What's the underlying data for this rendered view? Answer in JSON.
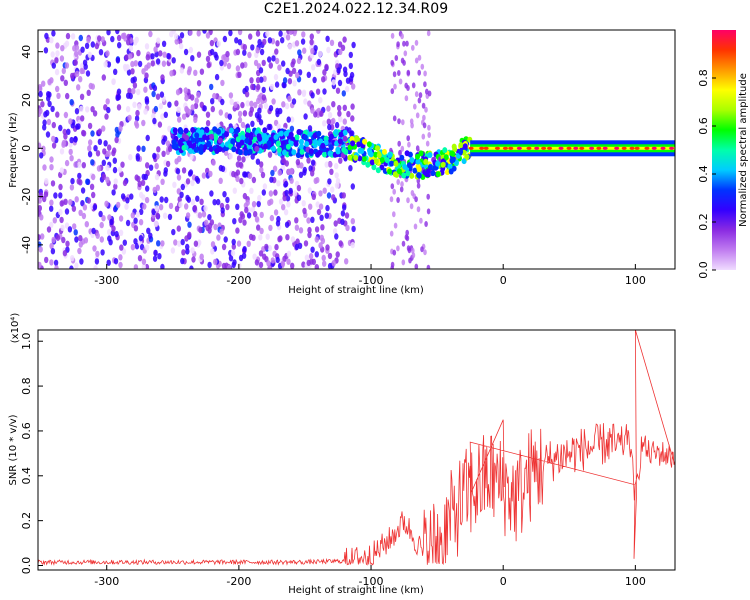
{
  "title": "C2E1.2024.022.12.34.R09",
  "chart_data": [
    {
      "type": "heatmap",
      "xlabel": "Height of straight line (km)",
      "ylabel": "Frequency (Hz)",
      "xlim": [
        -352,
        130
      ],
      "ylim": [
        -50,
        49
      ],
      "xticks": [
        -300,
        -200,
        -100,
        0,
        100
      ],
      "yticks": [
        -40,
        -20,
        0,
        20,
        40
      ],
      "colorbar": {
        "label": "Normalized spectral amplitude",
        "range": [
          0.0,
          1.0
        ],
        "ticks": [
          0.0,
          0.2,
          0.4,
          0.6,
          0.8
        ],
        "colors": [
          "#f0dcff",
          "#c07cf0",
          "#8a2be2",
          "#3300ff",
          "#0033ff",
          "#00ccff",
          "#00ffaa",
          "#00ff00",
          "#aaff00",
          "#ffff00",
          "#ff9900",
          "#ff3300",
          "#ff0066"
        ]
      },
      "features": [
        {
          "x_range": [
            -352,
            -113
          ],
          "freq_range": [
            -50,
            49
          ],
          "amplitude": 0.15,
          "desc": "broadband noise"
        },
        {
          "x": [
            -250,
            -200,
            -150,
            -120,
            -100,
            -80,
            -60,
            -40,
            -25
          ],
          "freq": [
            3,
            3,
            2,
            2,
            -3,
            -7,
            -7,
            -5,
            1
          ],
          "amplitude": 0.5
        },
        {
          "x_range": [
            -25,
            130
          ],
          "freq": 0,
          "amplitude": 0.95,
          "desc": "strong carrier line"
        }
      ]
    },
    {
      "type": "line",
      "xlabel": "Height of straight line (km)",
      "ylabel": "SNR (10 * v/v)",
      "yscale_label": "(x10⁴)",
      "xlim": [
        -352,
        130
      ],
      "ylim": [
        -0.02,
        1.05
      ],
      "xticks": [
        -300,
        -200,
        -100,
        0,
        100
      ],
      "yticks": [
        0.0,
        0.2,
        0.4,
        0.6,
        0.8,
        1.0
      ],
      "series": [
        {
          "color": "#ee3333",
          "x": [
            -352,
            -300,
            -250,
            -200,
            -150,
            -120,
            -100,
            -85,
            -75,
            -70,
            -60,
            -50,
            -40,
            -30,
            -20,
            -10,
            0,
            10,
            20,
            30,
            40,
            50,
            60,
            70,
            80,
            90,
            95,
            100,
            105,
            110,
            120,
            130
          ],
          "y": [
            0.015,
            0.015,
            0.015,
            0.015,
            0.015,
            0.02,
            0.04,
            0.12,
            0.2,
            0.15,
            0.05,
            0.1,
            0.2,
            0.3,
            0.35,
            0.4,
            0.35,
            0.3,
            0.4,
            0.45,
            0.48,
            0.5,
            0.52,
            0.53,
            0.55,
            0.52,
            0.6,
            0.3,
            0.55,
            0.5,
            0.5,
            0.48
          ],
          "extremes": [
            {
              "x": 100,
              "y": 1.05
            },
            {
              "x": 99,
              "y": 0.03
            },
            {
              "x": -25,
              "y": 0.55
            },
            {
              "x": 0,
              "y": 0.65
            }
          ]
        }
      ]
    }
  ]
}
